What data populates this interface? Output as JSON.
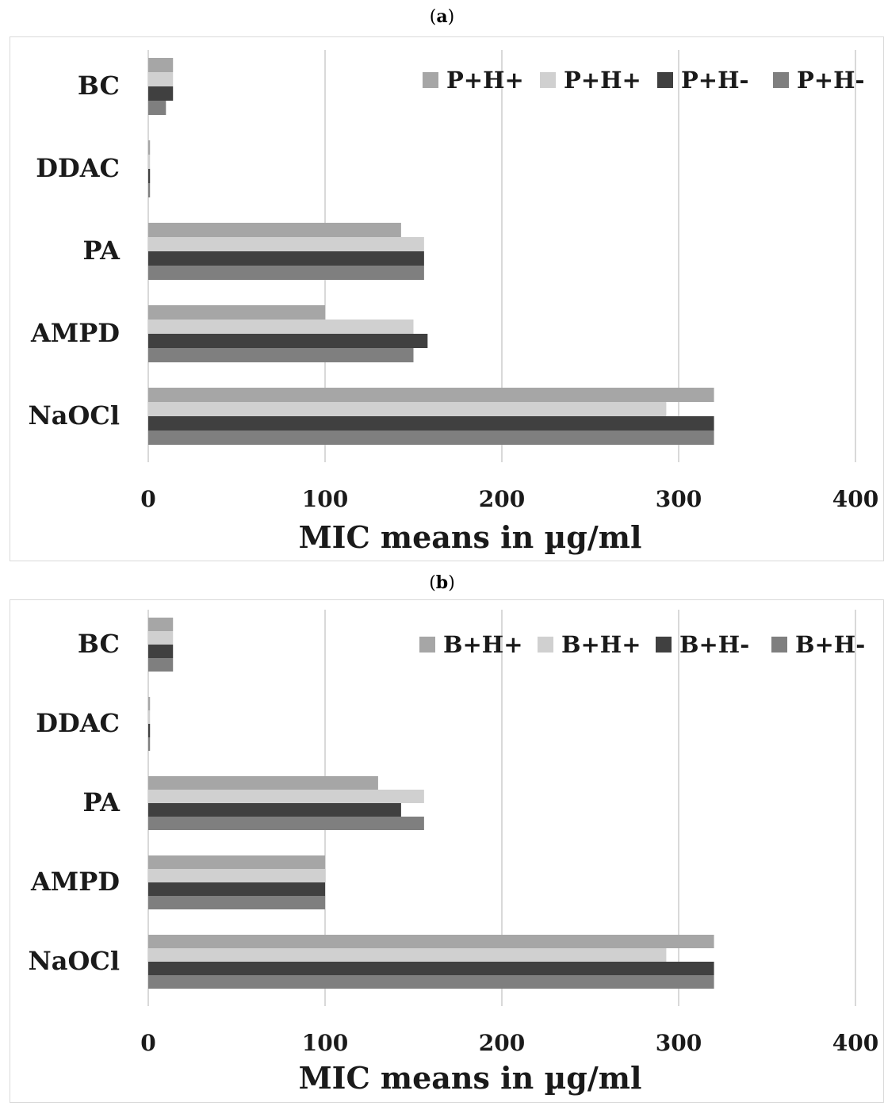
{
  "panels": [
    {
      "label": "a",
      "chart_data": {
        "type": "bar",
        "orientation": "horizontal",
        "categories": [
          "BC",
          "DDAC",
          "PA",
          "AMPD",
          "NaOCl"
        ],
        "series": [
          {
            "name": "P+H+",
            "color": "#a6a6a6",
            "values": [
              14,
              1,
              143,
              100,
              320
            ]
          },
          {
            "name": "P+H+",
            "color": "#d0d0d0",
            "values": [
              14,
              1,
              156,
              150,
              293
            ]
          },
          {
            "name": "P+H-",
            "color": "#404040",
            "values": [
              14,
              1,
              156,
              158,
              320
            ]
          },
          {
            "name": "P+H-",
            "color": "#7f7f7f",
            "values": [
              10,
              1,
              156,
              150,
              320
            ]
          }
        ],
        "xticks": [
          "0",
          "100",
          "200",
          "300",
          "400"
        ],
        "xlim": [
          0,
          400
        ],
        "xlabel": "MIC means in µg/ml",
        "grid": true,
        "legend": "top-right"
      }
    },
    {
      "label": "b",
      "chart_data": {
        "type": "bar",
        "orientation": "horizontal",
        "categories": [
          "BC",
          "DDAC",
          "PA",
          "AMPD",
          "NaOCl"
        ],
        "series": [
          {
            "name": "B+H+",
            "color": "#a6a6a6",
            "values": [
              14,
              1,
              130,
              100,
              320
            ]
          },
          {
            "name": "B+H+",
            "color": "#d0d0d0",
            "values": [
              14,
              1,
              156,
              100,
              293
            ]
          },
          {
            "name": "B+H-",
            "color": "#404040",
            "values": [
              14,
              1,
              143,
              100,
              320
            ]
          },
          {
            "name": "B+H-",
            "color": "#7f7f7f",
            "values": [
              14,
              1,
              156,
              100,
              320
            ]
          }
        ],
        "xticks": [
          "0",
          "100",
          "200",
          "300",
          "400"
        ],
        "xlim": [
          0,
          400
        ],
        "xlabel": "MIC means in µg/ml",
        "grid": true,
        "legend": "top-right"
      }
    }
  ]
}
